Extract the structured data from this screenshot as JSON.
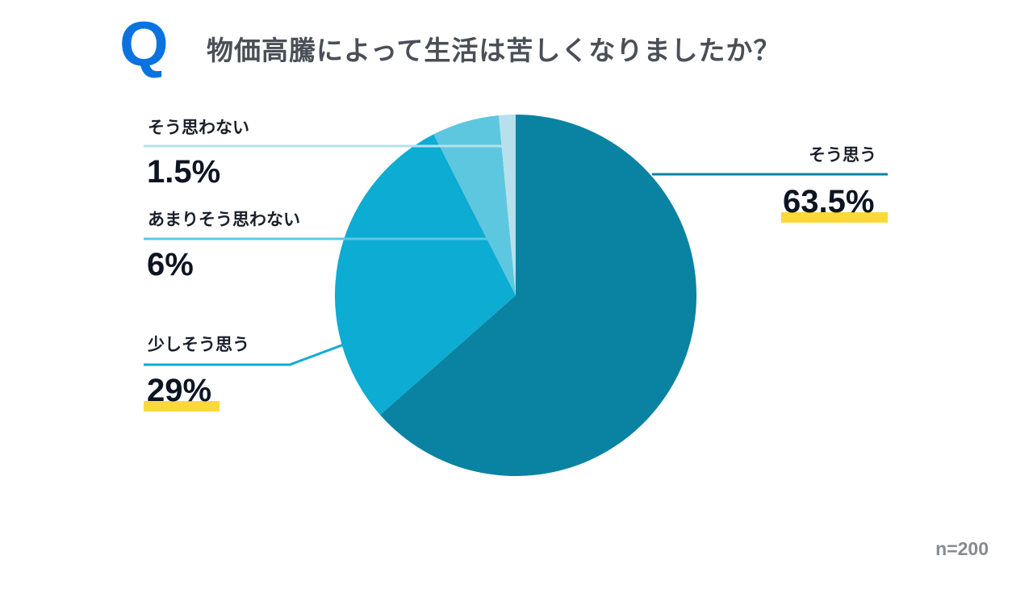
{
  "header": {
    "q_mark": "Q",
    "title": "物価高騰によって生活は苦しくなりましたか？"
  },
  "labels": {
    "sou_omou": {
      "label": "そう思う",
      "value": "63.5%"
    },
    "sukoshi": {
      "label": "少しそう思う",
      "value": "29%"
    },
    "amari": {
      "label": "あまりそう思わない",
      "value": "6%"
    },
    "omowanai": {
      "label": "そう思わない",
      "value": "1.5%"
    }
  },
  "footer": {
    "sample_size": "n=200"
  },
  "colors": {
    "q_mark": "#0a73e0",
    "slice_sou_omou": "#0a83a2",
    "slice_sukoshi": "#0cacd3",
    "slice_amari": "#5ec7e0",
    "slice_omowanai": "#b6e0ec",
    "highlight": "#fcd83a"
  },
  "chart_data": {
    "type": "pie",
    "title": "物価高騰によって生活は苦しくなりましたか？",
    "categories": [
      "そう思う",
      "少しそう思う",
      "あまりそう思わない",
      "そう思わない"
    ],
    "values": [
      63.5,
      29,
      6,
      1.5
    ],
    "unit": "%",
    "sample_size": 200,
    "start_angle": "12 o'clock",
    "direction": "clockwise",
    "highlighted": [
      "そう思う",
      "少しそう思う"
    ]
  }
}
